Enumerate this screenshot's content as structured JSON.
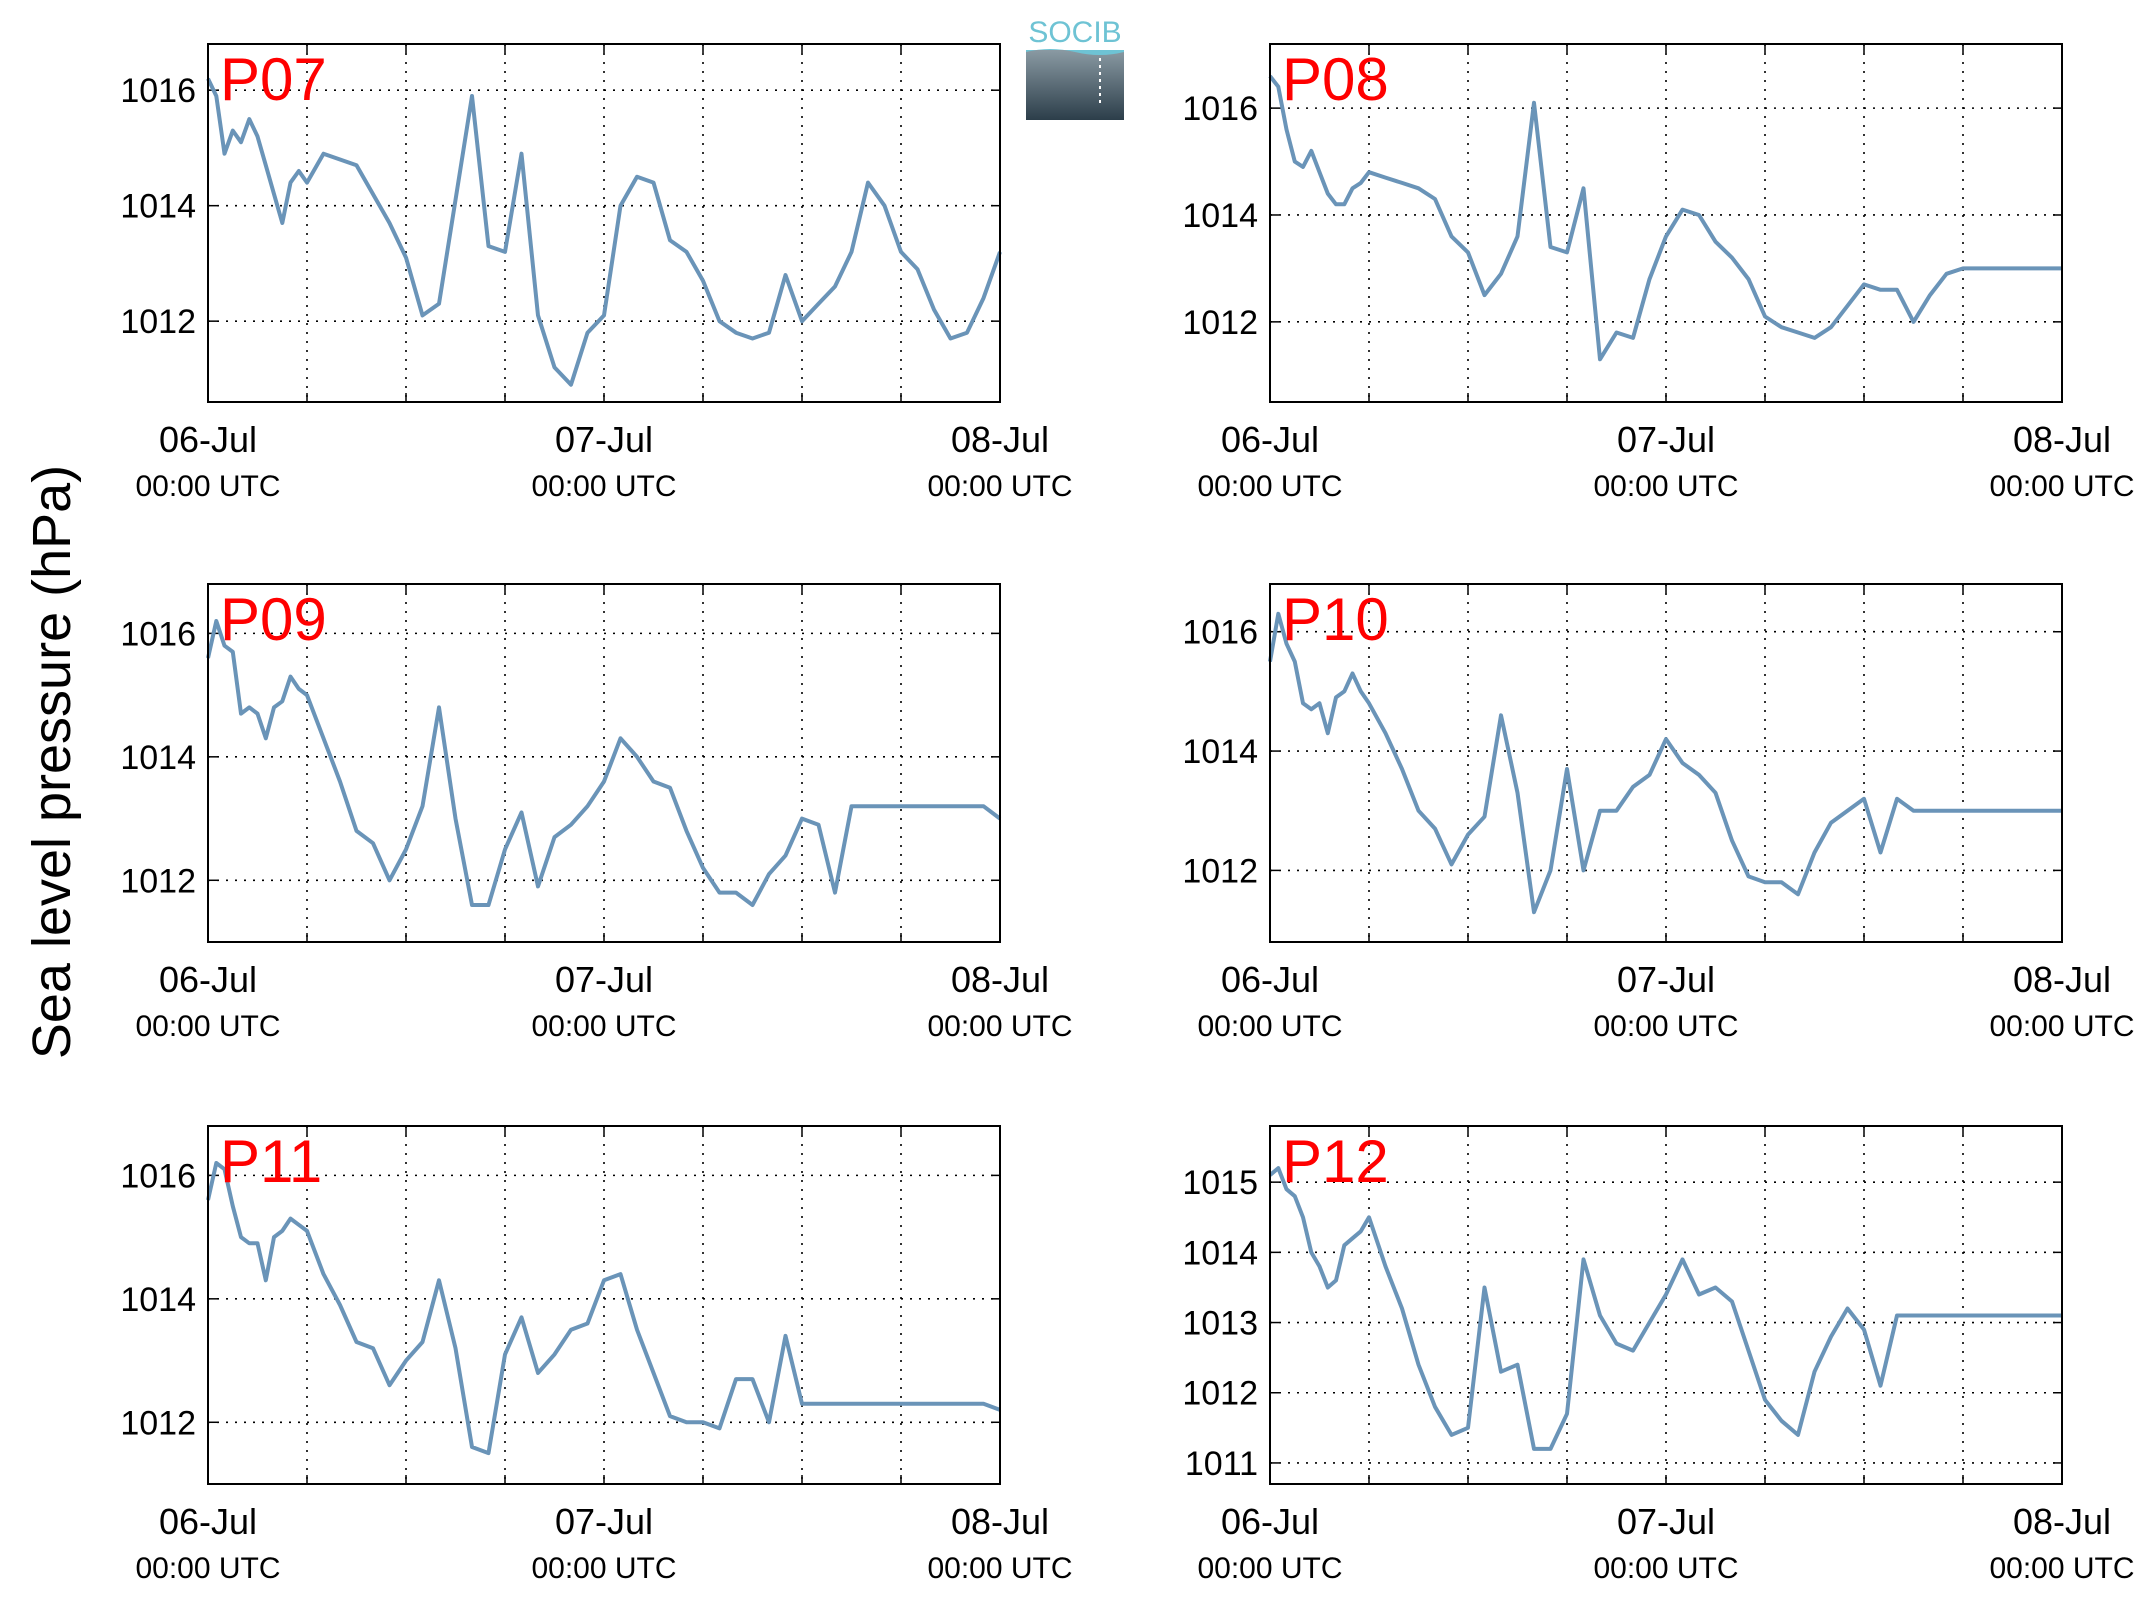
{
  "figure": {
    "ylabel": "Sea level pressure (hPa)",
    "logo_text": "SOCIB",
    "colors": {
      "line": "#6a94b8",
      "station_label": "#ff0000",
      "axis": "#000000",
      "grid": "#000000"
    }
  },
  "chart_data": [
    {
      "type": "line",
      "station": "P07",
      "ylim": [
        1010.6,
        1016.8
      ],
      "yticks": [
        1012,
        1014,
        1016
      ],
      "xlim_hours": [
        0,
        48
      ],
      "grid": true,
      "x_ticks": [
        {
          "date": "06-Jul",
          "time": "00:00 UTC",
          "hours": 0
        },
        {
          "date": "07-Jul",
          "time": "00:00 UTC",
          "hours": 24
        },
        {
          "date": "08-Jul",
          "time": "00:00 UTC",
          "hours": 48
        }
      ],
      "series": [
        {
          "x_hours": [
            0,
            0.5,
            1,
            1.5,
            2,
            2.5,
            3,
            3.5,
            4,
            4.5,
            5,
            5.5,
            6,
            7,
            8,
            9,
            10,
            11,
            12,
            13,
            14,
            15,
            16,
            17,
            18,
            19,
            20,
            21,
            22,
            23,
            24,
            25,
            26,
            27,
            28,
            29,
            30,
            31,
            32,
            33,
            34,
            35,
            36,
            37,
            38,
            39,
            40,
            41,
            42,
            43,
            44,
            45,
            46,
            47,
            48
          ],
          "y": [
            1016.2,
            1015.9,
            1014.9,
            1015.3,
            1015.1,
            1015.5,
            1015.2,
            1014.7,
            1014.2,
            1013.7,
            1014.4,
            1014.6,
            1014.4,
            1014.9,
            1014.8,
            1014.7,
            1014.2,
            1013.7,
            1013.1,
            1012.1,
            1012.3,
            1014.1,
            1015.9,
            1013.3,
            1013.2,
            1014.9,
            1012.1,
            1011.2,
            1010.9,
            1011.8,
            1012.1,
            1014.0,
            1014.5,
            1014.4,
            1013.4,
            1013.2,
            1012.7,
            1012.0,
            1011.8,
            1011.7,
            1011.8,
            1012.8,
            1012.0,
            1012.3,
            1012.6,
            1013.2,
            1014.4,
            1014.0,
            1013.2,
            1012.9,
            1012.2,
            1011.7,
            1011.8,
            1012.4,
            1013.2
          ]
        }
      ]
    },
    {
      "type": "line",
      "station": "P08",
      "ylim": [
        1010.5,
        1017.2
      ],
      "yticks": [
        1012,
        1014,
        1016
      ],
      "xlim_hours": [
        0,
        48
      ],
      "grid": true,
      "x_ticks": [
        {
          "date": "06-Jul",
          "time": "00:00 UTC",
          "hours": 0
        },
        {
          "date": "07-Jul",
          "time": "00:00 UTC",
          "hours": 24
        },
        {
          "date": "08-Jul",
          "time": "00:00 UTC",
          "hours": 48
        }
      ],
      "series": [
        {
          "x_hours": [
            0,
            0.5,
            1,
            1.5,
            2,
            2.5,
            3,
            3.5,
            4,
            4.5,
            5,
            5.5,
            6,
            7,
            8,
            9,
            10,
            11,
            12,
            13,
            14,
            15,
            16,
            17,
            18,
            19,
            20,
            21,
            22,
            23,
            24,
            25,
            26,
            27,
            28,
            29,
            30,
            31,
            32,
            33,
            34,
            35,
            36,
            37,
            38,
            39,
            40,
            41,
            42,
            43,
            44,
            45,
            46,
            47,
            48
          ],
          "y": [
            1016.6,
            1016.4,
            1015.6,
            1015.0,
            1014.9,
            1015.2,
            1014.8,
            1014.4,
            1014.2,
            1014.2,
            1014.5,
            1014.6,
            1014.8,
            1014.7,
            1014.6,
            1014.5,
            1014.3,
            1013.6,
            1013.3,
            1012.5,
            1012.9,
            1013.6,
            1016.1,
            1013.4,
            1013.3,
            1014.5,
            1011.3,
            1011.8,
            1011.7,
            1012.8,
            1013.6,
            1014.1,
            1014.0,
            1013.5,
            1013.2,
            1012.8,
            1012.1,
            1011.9,
            1011.8,
            1011.7,
            1011.9,
            1012.3,
            1012.7,
            1012.6,
            1012.6,
            1012.0,
            1012.5,
            1012.9,
            1013.0,
            1013.0,
            1013.0,
            1013.0,
            1013.0,
            1013.0,
            1013.0
          ]
        }
      ]
    },
    {
      "type": "line",
      "station": "P09",
      "ylim": [
        1011,
        1016.8
      ],
      "yticks": [
        1012,
        1014,
        1016
      ],
      "xlim_hours": [
        0,
        48
      ],
      "grid": true,
      "x_ticks": [
        {
          "date": "06-Jul",
          "time": "00:00 UTC",
          "hours": 0
        },
        {
          "date": "07-Jul",
          "time": "00:00 UTC",
          "hours": 24
        },
        {
          "date": "08-Jul",
          "time": "00:00 UTC",
          "hours": 48
        }
      ],
      "series": [
        {
          "x_hours": [
            0,
            0.5,
            1,
            1.5,
            2,
            2.5,
            3,
            3.5,
            4,
            4.5,
            5,
            5.5,
            6,
            7,
            8,
            9,
            10,
            11,
            12,
            13,
            14,
            15,
            16,
            17,
            18,
            19,
            20,
            21,
            22,
            23,
            24,
            25,
            26,
            27,
            28,
            29,
            30,
            31,
            32,
            33,
            34,
            35,
            36,
            37,
            38,
            39,
            40,
            41,
            42,
            43,
            44,
            45,
            46,
            47,
            48
          ],
          "y": [
            1015.6,
            1016.2,
            1015.8,
            1015.7,
            1014.7,
            1014.8,
            1014.7,
            1014.3,
            1014.8,
            1014.9,
            1015.3,
            1015.1,
            1015.0,
            1014.3,
            1013.6,
            1012.8,
            1012.6,
            1012.0,
            1012.5,
            1013.2,
            1014.8,
            1013.0,
            1011.6,
            1011.6,
            1012.5,
            1013.1,
            1011.9,
            1012.7,
            1012.9,
            1013.2,
            1013.6,
            1014.3,
            1014.0,
            1013.6,
            1013.5,
            1012.8,
            1012.2,
            1011.8,
            1011.8,
            1011.6,
            1012.1,
            1012.4,
            1013.0,
            1012.9,
            1011.8,
            1013.2,
            1013.2,
            1013.2,
            1013.2,
            1013.2,
            1013.2,
            1013.2,
            1013.2,
            1013.2,
            1013.0
          ]
        }
      ]
    },
    {
      "type": "line",
      "station": "P10",
      "ylim": [
        1010.8,
        1016.8
      ],
      "yticks": [
        1012,
        1014,
        1016
      ],
      "xlim_hours": [
        0,
        48
      ],
      "grid": true,
      "x_ticks": [
        {
          "date": "06-Jul",
          "time": "00:00 UTC",
          "hours": 0
        },
        {
          "date": "07-Jul",
          "time": "00:00 UTC",
          "hours": 24
        },
        {
          "date": "08-Jul",
          "time": "00:00 UTC",
          "hours": 48
        }
      ],
      "series": [
        {
          "x_hours": [
            0,
            0.5,
            1,
            1.5,
            2,
            2.5,
            3,
            3.5,
            4,
            4.5,
            5,
            5.5,
            6,
            7,
            8,
            9,
            10,
            11,
            12,
            13,
            14,
            15,
            16,
            17,
            18,
            19,
            20,
            21,
            22,
            23,
            24,
            25,
            26,
            27,
            28,
            29,
            30,
            31,
            32,
            33,
            34,
            35,
            36,
            37,
            38,
            39,
            40,
            41,
            42,
            43,
            44,
            45,
            46,
            47,
            48
          ],
          "y": [
            1015.5,
            1016.3,
            1015.8,
            1015.5,
            1014.8,
            1014.7,
            1014.8,
            1014.3,
            1014.9,
            1015.0,
            1015.3,
            1015.0,
            1014.8,
            1014.3,
            1013.7,
            1013.0,
            1012.7,
            1012.1,
            1012.6,
            1012.9,
            1014.6,
            1013.3,
            1011.3,
            1012.0,
            1013.7,
            1012.0,
            1013.0,
            1013.0,
            1013.4,
            1013.6,
            1014.2,
            1013.8,
            1013.6,
            1013.3,
            1012.5,
            1011.9,
            1011.8,
            1011.8,
            1011.6,
            1012.3,
            1012.8,
            1013.0,
            1013.2,
            1012.3,
            1013.2,
            1013.0,
            1013.0,
            1013.0,
            1013.0,
            1013.0,
            1013.0,
            1013.0,
            1013.0,
            1013.0,
            1013.0
          ]
        }
      ]
    },
    {
      "type": "line",
      "station": "P11",
      "ylim": [
        1011,
        1016.8
      ],
      "yticks": [
        1012,
        1014,
        1016
      ],
      "xlim_hours": [
        0,
        48
      ],
      "grid": true,
      "x_ticks": [
        {
          "date": "06-Jul",
          "time": "00:00 UTC",
          "hours": 0
        },
        {
          "date": "07-Jul",
          "time": "00:00 UTC",
          "hours": 24
        },
        {
          "date": "08-Jul",
          "time": "00:00 UTC",
          "hours": 48
        }
      ],
      "series": [
        {
          "x_hours": [
            0,
            0.5,
            1,
            1.5,
            2,
            2.5,
            3,
            3.5,
            4,
            4.5,
            5,
            5.5,
            6,
            7,
            8,
            9,
            10,
            11,
            12,
            13,
            14,
            15,
            16,
            17,
            18,
            19,
            20,
            21,
            22,
            23,
            24,
            25,
            26,
            27,
            28,
            29,
            30,
            31,
            32,
            33,
            34,
            35,
            36,
            37,
            38,
            39,
            40,
            41,
            42,
            43,
            44,
            45,
            46,
            47,
            48
          ],
          "y": [
            1015.6,
            1016.2,
            1016.1,
            1015.5,
            1015.0,
            1014.9,
            1014.9,
            1014.3,
            1015.0,
            1015.1,
            1015.3,
            1015.2,
            1015.1,
            1014.4,
            1013.9,
            1013.3,
            1013.2,
            1012.6,
            1013.0,
            1013.3,
            1014.3,
            1013.2,
            1011.6,
            1011.5,
            1013.1,
            1013.7,
            1012.8,
            1013.1,
            1013.5,
            1013.6,
            1014.3,
            1014.4,
            1013.5,
            1012.8,
            1012.1,
            1012.0,
            1012.0,
            1011.9,
            1012.7,
            1012.7,
            1012.0,
            1013.4,
            1012.3,
            1012.3,
            1012.3,
            1012.3,
            1012.3,
            1012.3,
            1012.3,
            1012.3,
            1012.3,
            1012.3,
            1012.3,
            1012.3,
            1012.2
          ]
        }
      ]
    },
    {
      "type": "line",
      "station": "P12",
      "ylim": [
        1010.7,
        1015.8
      ],
      "yticks": [
        1011,
        1012,
        1013,
        1014,
        1015
      ],
      "xlim_hours": [
        0,
        48
      ],
      "grid": true,
      "x_ticks": [
        {
          "date": "06-Jul",
          "time": "00:00 UTC",
          "hours": 0
        },
        {
          "date": "07-Jul",
          "time": "00:00 UTC",
          "hours": 24
        },
        {
          "date": "08-Jul",
          "time": "00:00 UTC",
          "hours": 48
        }
      ],
      "series": [
        {
          "x_hours": [
            0,
            0.5,
            1,
            1.5,
            2,
            2.5,
            3,
            3.5,
            4,
            4.5,
            5,
            5.5,
            6,
            7,
            8,
            9,
            10,
            11,
            12,
            13,
            14,
            15,
            16,
            17,
            18,
            19,
            20,
            21,
            22,
            23,
            24,
            25,
            26,
            27,
            28,
            29,
            30,
            31,
            32,
            33,
            34,
            35,
            36,
            37,
            38,
            39,
            40,
            41,
            42,
            43,
            44,
            45,
            46,
            47,
            48
          ],
          "y": [
            1015.1,
            1015.2,
            1014.9,
            1014.8,
            1014.5,
            1014.0,
            1013.8,
            1013.5,
            1013.6,
            1014.1,
            1014.2,
            1014.3,
            1014.5,
            1013.8,
            1013.2,
            1012.4,
            1011.8,
            1011.4,
            1011.5,
            1013.5,
            1012.3,
            1012.4,
            1011.2,
            1011.2,
            1011.7,
            1013.9,
            1013.1,
            1012.7,
            1012.6,
            1013.0,
            1013.4,
            1013.9,
            1013.4,
            1013.5,
            1013.3,
            1012.6,
            1011.9,
            1011.6,
            1011.4,
            1012.3,
            1012.8,
            1013.2,
            1012.9,
            1012.1,
            1013.1,
            1013.1,
            1013.1,
            1013.1,
            1013.1,
            1013.1,
            1013.1,
            1013.1,
            1013.1,
            1013.1,
            1013.1
          ]
        }
      ]
    }
  ]
}
